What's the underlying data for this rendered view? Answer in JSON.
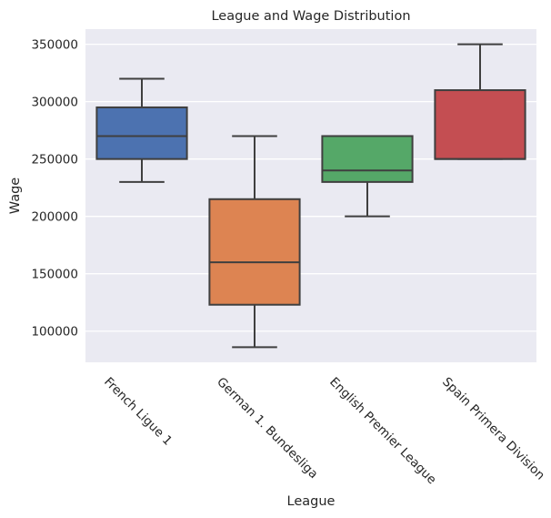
{
  "chart_data": {
    "type": "box",
    "title": "League and Wage Distribution",
    "xlabel": "League",
    "ylabel": "Wage",
    "categories": [
      "French Ligue 1",
      "German 1. Bundesliga",
      "English Premier League",
      "Spain Primera Division"
    ],
    "boxes": [
      {
        "category": "French Ligue 1",
        "whisker_low": 230000,
        "q1": 250000,
        "median": 270000,
        "q3": 295000,
        "whisker_high": 320000,
        "color": "#4c72b0"
      },
      {
        "category": "German 1. Bundesliga",
        "whisker_low": 86000,
        "q1": 123000,
        "median": 160000,
        "q3": 215000,
        "whisker_high": 270000,
        "color": "#dd8452"
      },
      {
        "category": "English Premier League",
        "whisker_low": 200000,
        "q1": 230000,
        "median": 240000,
        "q3": 270000,
        "whisker_high": 270000,
        "color": "#55a868"
      },
      {
        "category": "Spain Primera Division",
        "whisker_low": 250000,
        "q1": 250000,
        "median": 250000,
        "q3": 310000,
        "whisker_high": 350000,
        "color": "#c44e52"
      }
    ],
    "yticks": [
      100000,
      150000,
      200000,
      250000,
      300000,
      350000
    ],
    "ytick_labels": [
      "100000",
      "150000",
      "200000",
      "250000",
      "300000",
      "350000"
    ],
    "ylim": [
      72800,
      363200
    ],
    "xtick_rotation": 45,
    "grid": true,
    "legend": "none",
    "background_color": "#eaeaf2",
    "grid_color": "#ffffff",
    "line_color": "#3f3f3f"
  }
}
